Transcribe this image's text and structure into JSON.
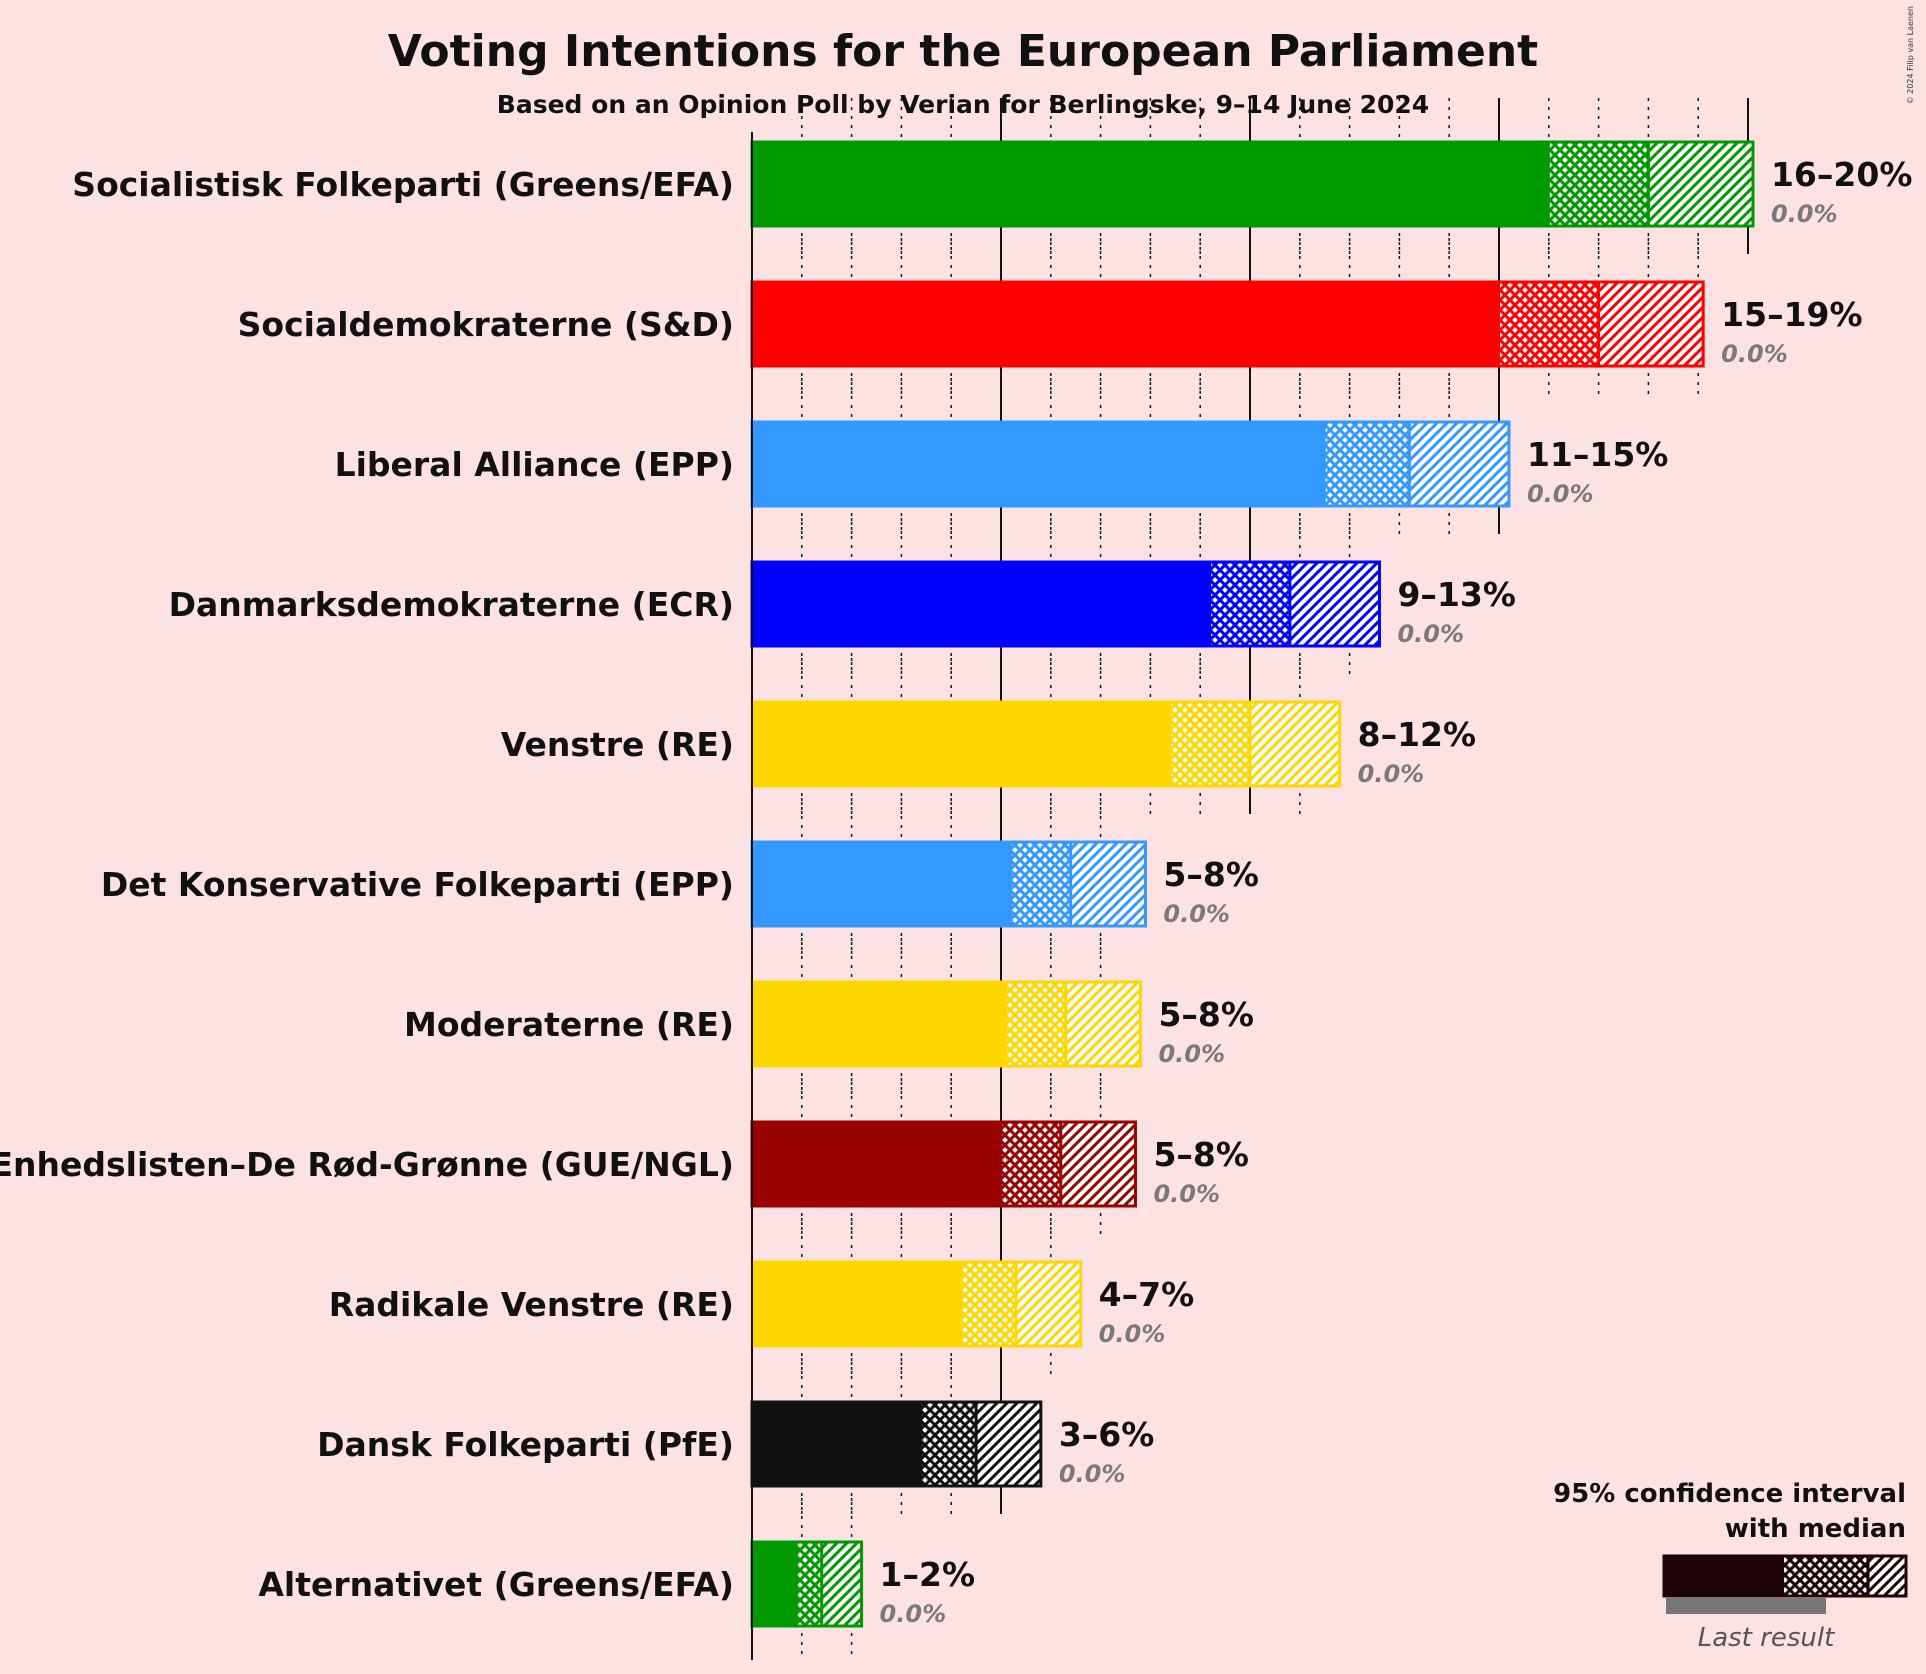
{
  "chart_data": {
    "type": "bar",
    "title": "Voting Intentions for the European Parliament",
    "subtitle": "Based on an Opinion Poll by Verian for Berlingske, 9–14 June 2024",
    "copyright": "© 2024 Filip van Laenen",
    "xlim": [
      0,
      20.5
    ],
    "legend": {
      "title_line1": "95% confidence interval",
      "title_line2": "with median",
      "last_result": "Last result",
      "placement": "bottom-right"
    },
    "parties": [
      {
        "name": "Socialistisk Folkeparti (Greens/EFA)",
        "color": "#009900",
        "low": 16,
        "median": 18,
        "high": 20.1,
        "range_label": "16–20%",
        "last_label": "0.0%",
        "last": 0.0
      },
      {
        "name": "Socialdemokraterne (S&D)",
        "color": "#ff0000",
        "low": 15,
        "median": 17,
        "high": 19.1,
        "range_label": "15–19%",
        "last_label": "0.0%",
        "last": 0.0
      },
      {
        "name": "Liberal Alliance (EPP)",
        "color": "#3399ff",
        "low": 11.5,
        "median": 13.2,
        "high": 15.2,
        "range_label": "11–15%",
        "last_label": "0.0%",
        "last": 0.0
      },
      {
        "name": "Danmarksdemokraterne (ECR)",
        "color": "#0000ff",
        "low": 9.2,
        "median": 10.8,
        "high": 12.6,
        "range_label": "9–13%",
        "last_label": "0.0%",
        "last": 0.0
      },
      {
        "name": "Venstre (RE)",
        "color": "#ffd700",
        "low": 8.4,
        "median": 10.0,
        "high": 11.8,
        "range_label": "8–12%",
        "last_label": "0.0%",
        "last": 0.0
      },
      {
        "name": "Det Konservative Folkeparti (EPP)",
        "color": "#3399ff",
        "low": 5.2,
        "median": 6.4,
        "high": 7.9,
        "range_label": "5–8%",
        "last_label": "0.0%",
        "last": 0.0
      },
      {
        "name": "Moderaterne (RE)",
        "color": "#ffd700",
        "low": 5.1,
        "median": 6.3,
        "high": 7.8,
        "range_label": "5–8%",
        "last_label": "0.0%",
        "last": 0.0
      },
      {
        "name": "Enhedslisten–De Rød-Grønne (GUE/NGL)",
        "color": "#990000",
        "low": 5.0,
        "median": 6.2,
        "high": 7.7,
        "range_label": "5–8%",
        "last_label": "0.0%",
        "last": 0.0
      },
      {
        "name": "Radikale Venstre (RE)",
        "color": "#ffd700",
        "low": 4.2,
        "median": 5.3,
        "high": 6.6,
        "range_label": "4–7%",
        "last_label": "0.0%",
        "last": 0.0
      },
      {
        "name": "Dansk Folkeparti (PfE)",
        "color": "#111111",
        "low": 3.4,
        "median": 4.5,
        "high": 5.8,
        "range_label": "3–6%",
        "last_label": "0.0%",
        "last": 0.0
      },
      {
        "name": "Alternativet (Greens/EFA)",
        "color": "#009900",
        "low": 0.9,
        "median": 1.4,
        "high": 2.2,
        "range_label": "1–2%",
        "last_label": "0.0%",
        "last": 0.0
      }
    ]
  }
}
